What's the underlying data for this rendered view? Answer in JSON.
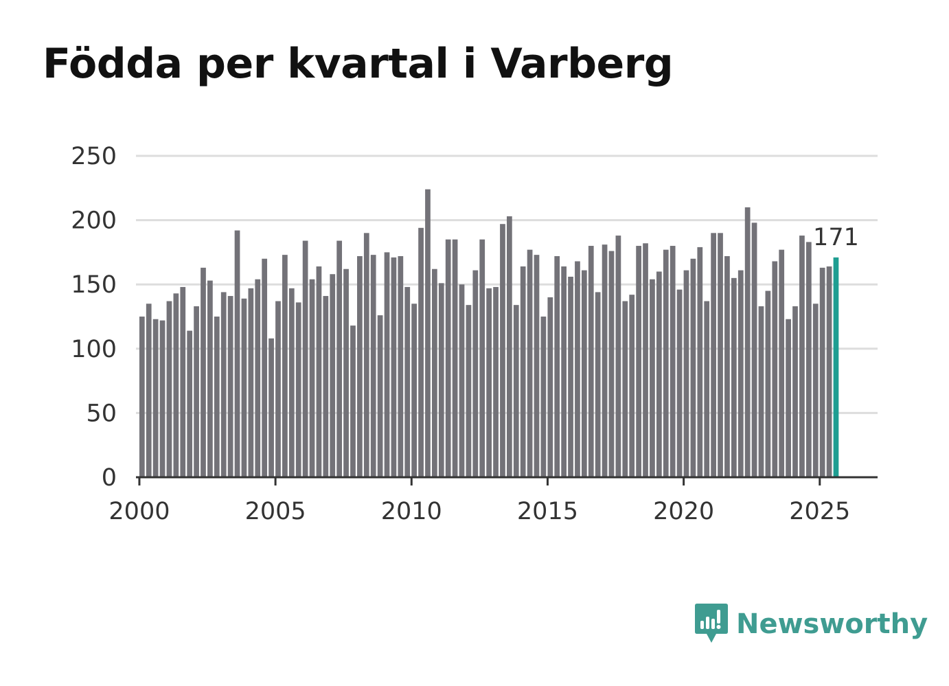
{
  "title": "Födda per kvartal i Varberg",
  "brand": {
    "name": "Newsworthy",
    "color": "#3f9c91"
  },
  "colors": {
    "bar": "#737278",
    "highlight": "#1f9e92",
    "grid": "#dddddd",
    "axis": "#333333"
  },
  "chart_data": {
    "type": "bar",
    "title": "Födda per kvartal i Varberg",
    "xlabel": "",
    "ylabel": "",
    "ylim": [
      0,
      250
    ],
    "yticks": [
      0,
      50,
      100,
      150,
      200,
      250
    ],
    "xticks": [
      2000,
      2005,
      2010,
      2015,
      2020,
      2025
    ],
    "xlim": [
      1999.875,
      2027.125
    ],
    "start_year": 2000,
    "period": "quarter",
    "grid": true,
    "highlight_last": true,
    "last_label": "171",
    "values": [
      125,
      135,
      123,
      122,
      137,
      143,
      148,
      114,
      133,
      163,
      153,
      125,
      144,
      141,
      192,
      139,
      147,
      154,
      170,
      108,
      137,
      173,
      147,
      136,
      184,
      154,
      164,
      141,
      158,
      184,
      162,
      118,
      172,
      190,
      173,
      126,
      175,
      171,
      172,
      148,
      135,
      194,
      224,
      162,
      151,
      185,
      185,
      150,
      134,
      161,
      185,
      147,
      148,
      197,
      203,
      134,
      164,
      177,
      173,
      125,
      140,
      172,
      164,
      156,
      168,
      161,
      180,
      144,
      181,
      176,
      188,
      137,
      142,
      180,
      182,
      154,
      160,
      177,
      180,
      146,
      161,
      170,
      179,
      137,
      190,
      190,
      172,
      155,
      161,
      210,
      198,
      133,
      145,
      168,
      177,
      123,
      133,
      188,
      183,
      135,
      163,
      164,
      171
    ]
  }
}
